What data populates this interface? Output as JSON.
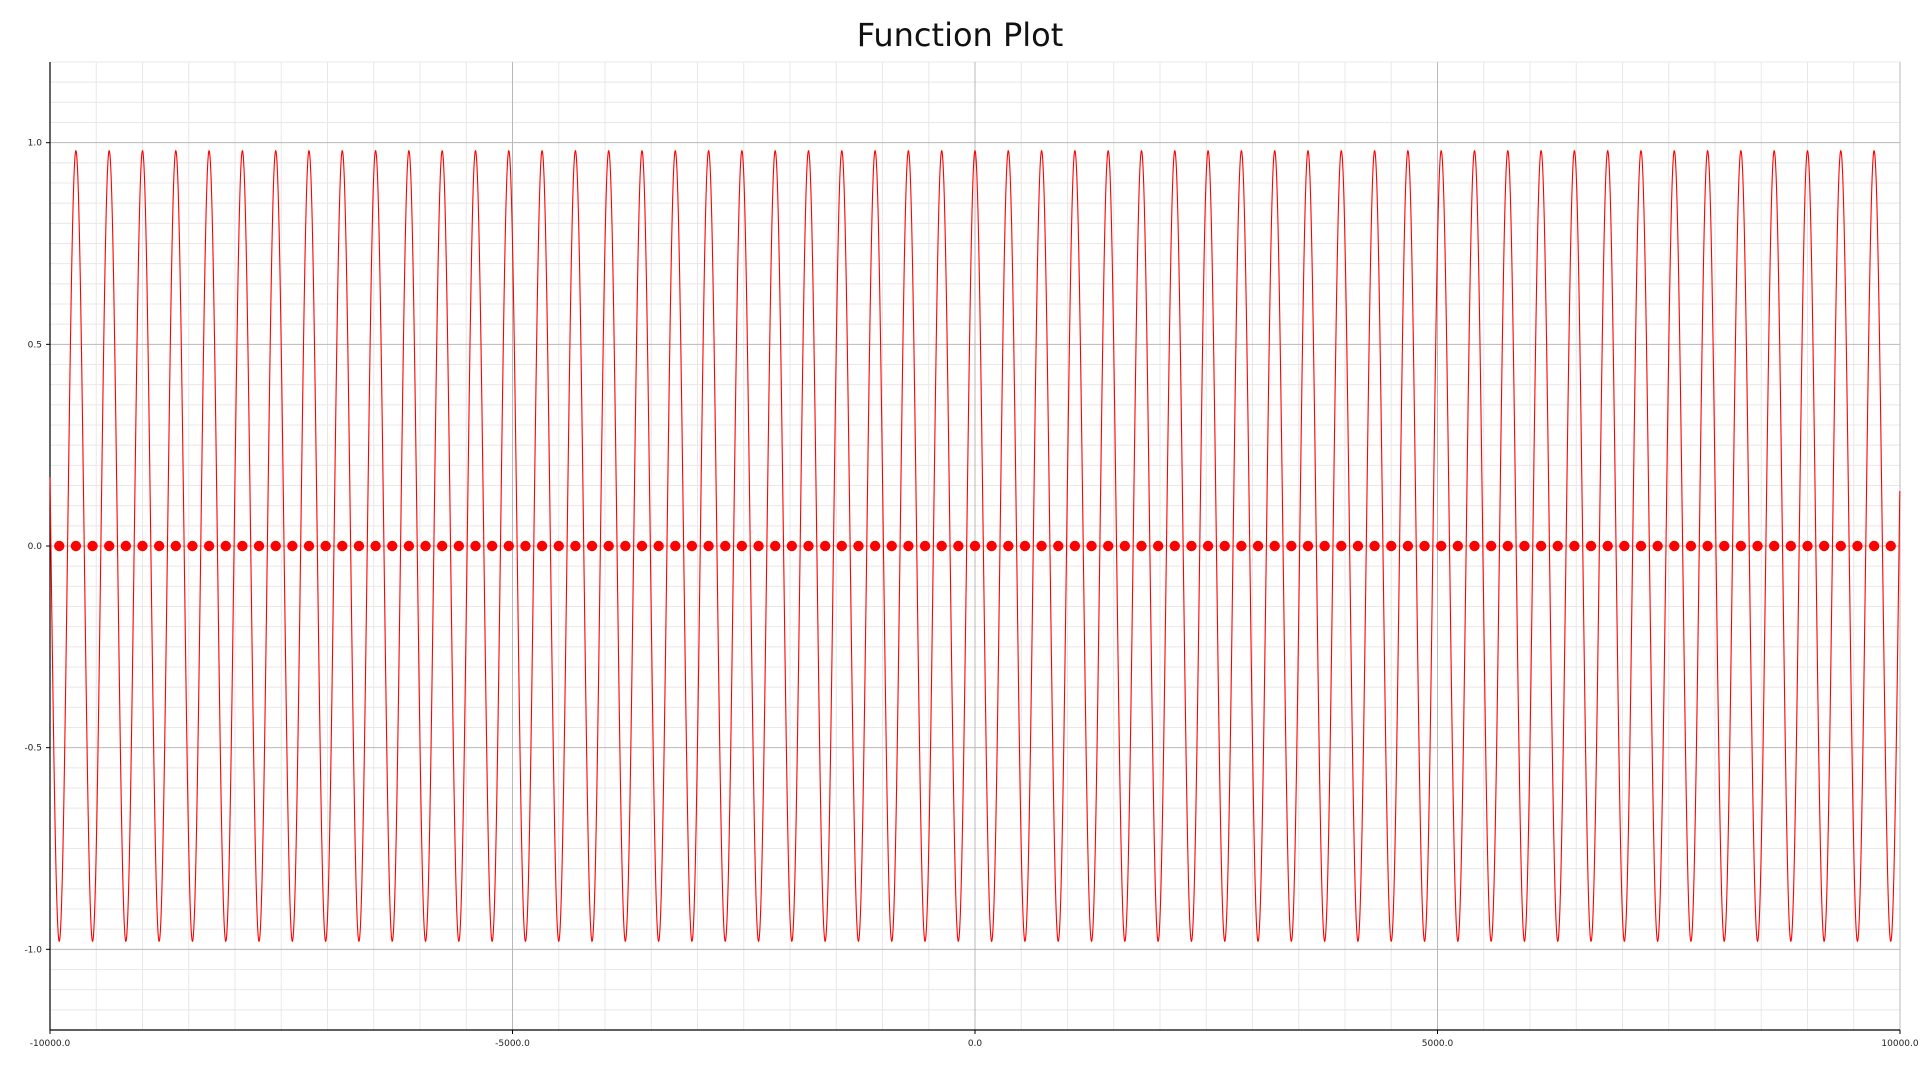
{
  "chart_data": {
    "type": "line",
    "title": "Function Plot",
    "xlabel": "",
    "ylabel": "",
    "xlim": [
      -10000,
      10000
    ],
    "ylim": [
      -1.2,
      1.2
    ],
    "grid": true,
    "legend": "none",
    "x_ticks": [
      "-10000.0",
      "-5000.0",
      "0.0",
      "5000.0",
      "10000.0"
    ],
    "y_ticks": [
      "1.0",
      "0.5",
      "0.0",
      "-0.5",
      "-1.0"
    ],
    "x_tick_values": [
      -10000,
      -5000,
      0,
      5000,
      10000
    ],
    "y_tick_values": [
      1.0,
      0.5,
      0.0,
      -0.5,
      -1.0
    ],
    "series": [
      {
        "kind": "line",
        "function": "cos",
        "period": 360,
        "amplitude": 0.98,
        "x_range": [
          -10000,
          10000
        ],
        "color": "#ff0000"
      },
      {
        "kind": "scatter",
        "x_range": [
          -9900,
          9900
        ],
        "x_step": 180,
        "y": 0,
        "color": "#ff0000"
      }
    ]
  }
}
